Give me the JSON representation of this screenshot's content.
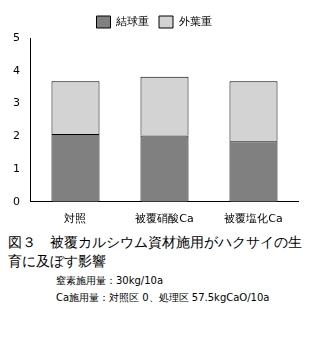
{
  "chart_data": {
    "type": "bar",
    "title": "図３　被覆カルシウム資材施用がハクサイの生育に及ぼす影響",
    "annotations": [
      "窒素施用量：30kg/10a",
      "Ca施用量：対照区 0、処理区 57.5kgCaO/10a"
    ],
    "categories": [
      "対照",
      "被覆硝酸Ca",
      "被覆塩化Ca"
    ],
    "series": [
      {
        "name": "結球重",
        "color": "#808080",
        "values": [
          2.07,
          2.02,
          1.85
        ]
      },
      {
        "name": "外葉重",
        "color": "#d3d3d3",
        "values": [
          1.61,
          1.8,
          1.83
        ]
      }
    ],
    "stacked": true,
    "ylim": [
      0,
      5
    ],
    "yticks": [
      0,
      1,
      2,
      3,
      4,
      5
    ],
    "grid": false,
    "legend": "top"
  }
}
